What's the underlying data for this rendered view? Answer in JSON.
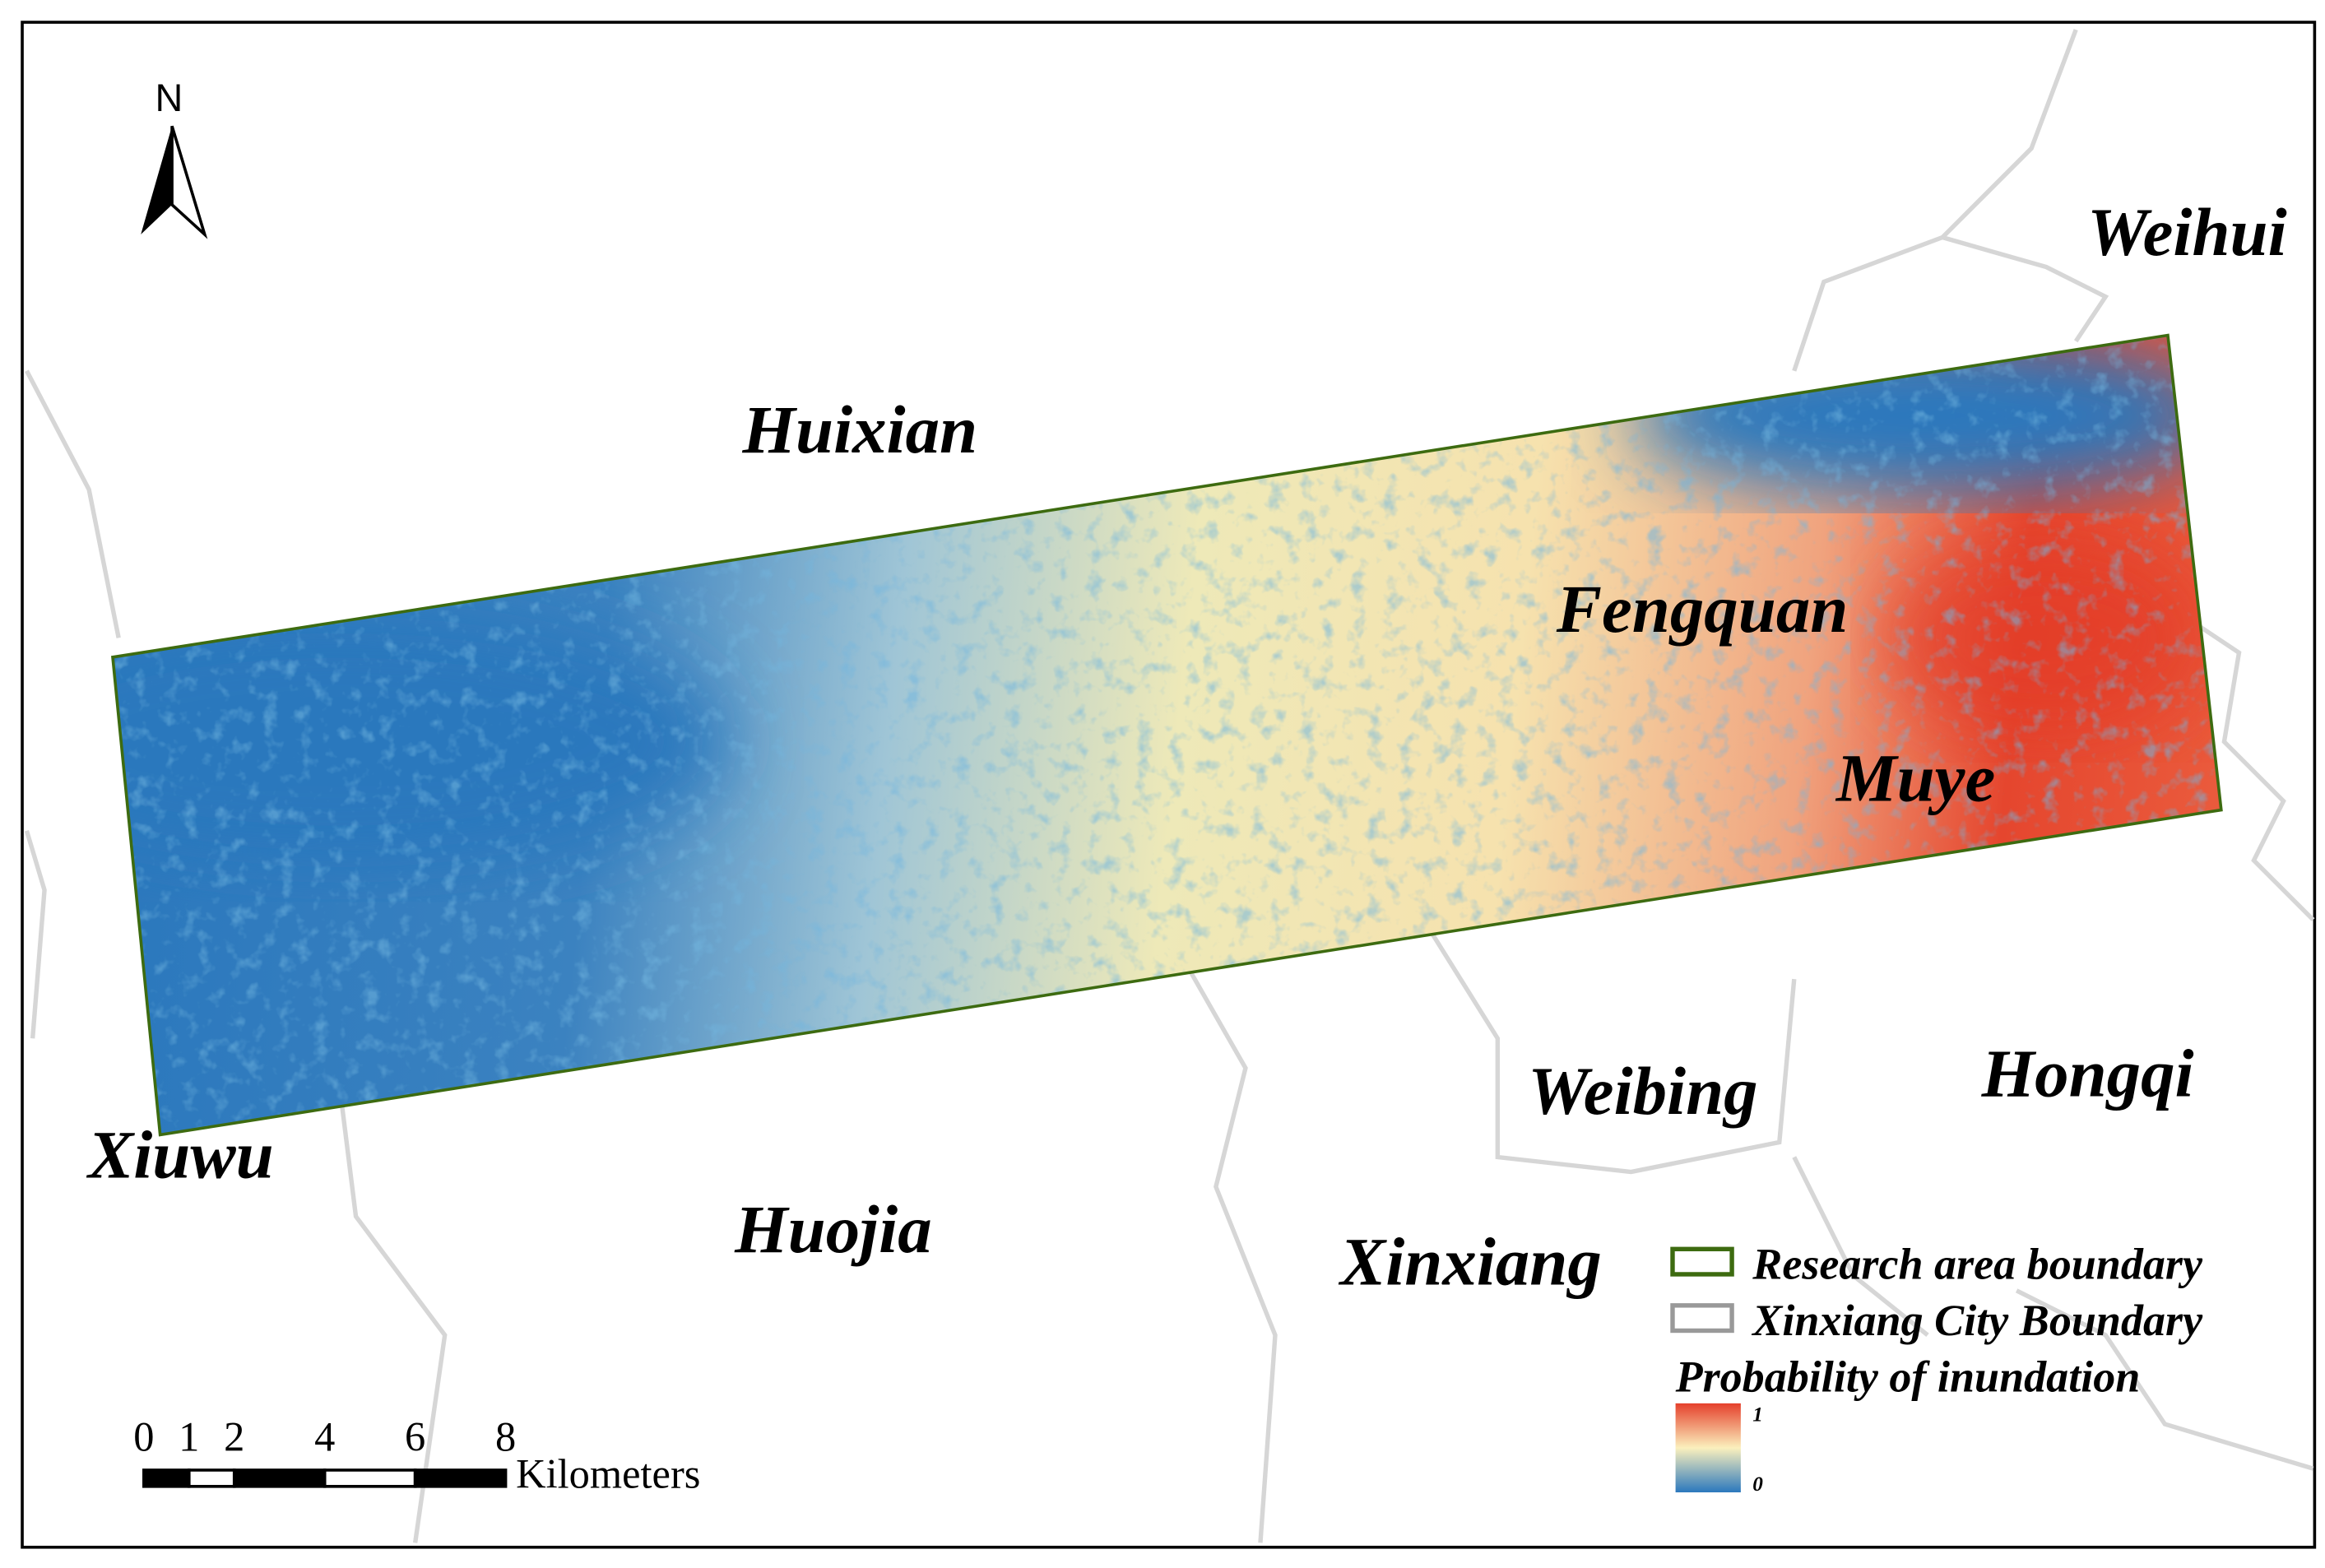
{
  "north_arrow": {
    "label": "N"
  },
  "places": [
    "Weihui",
    "Huixian",
    "Fengquan",
    "Muye",
    "Weibing",
    "Hongqi",
    "Xiuwu",
    "Huojia",
    "Xinxiang"
  ],
  "scale_bar": {
    "ticks": [
      0,
      1,
      2,
      4,
      6,
      8
    ],
    "unit": "Kilometers"
  },
  "legend": {
    "items": [
      "Research area boundary",
      "Xinxiang City Boundary"
    ],
    "title": "Probability of inundation",
    "gradient": {
      "max": 1,
      "min": 0
    }
  }
}
